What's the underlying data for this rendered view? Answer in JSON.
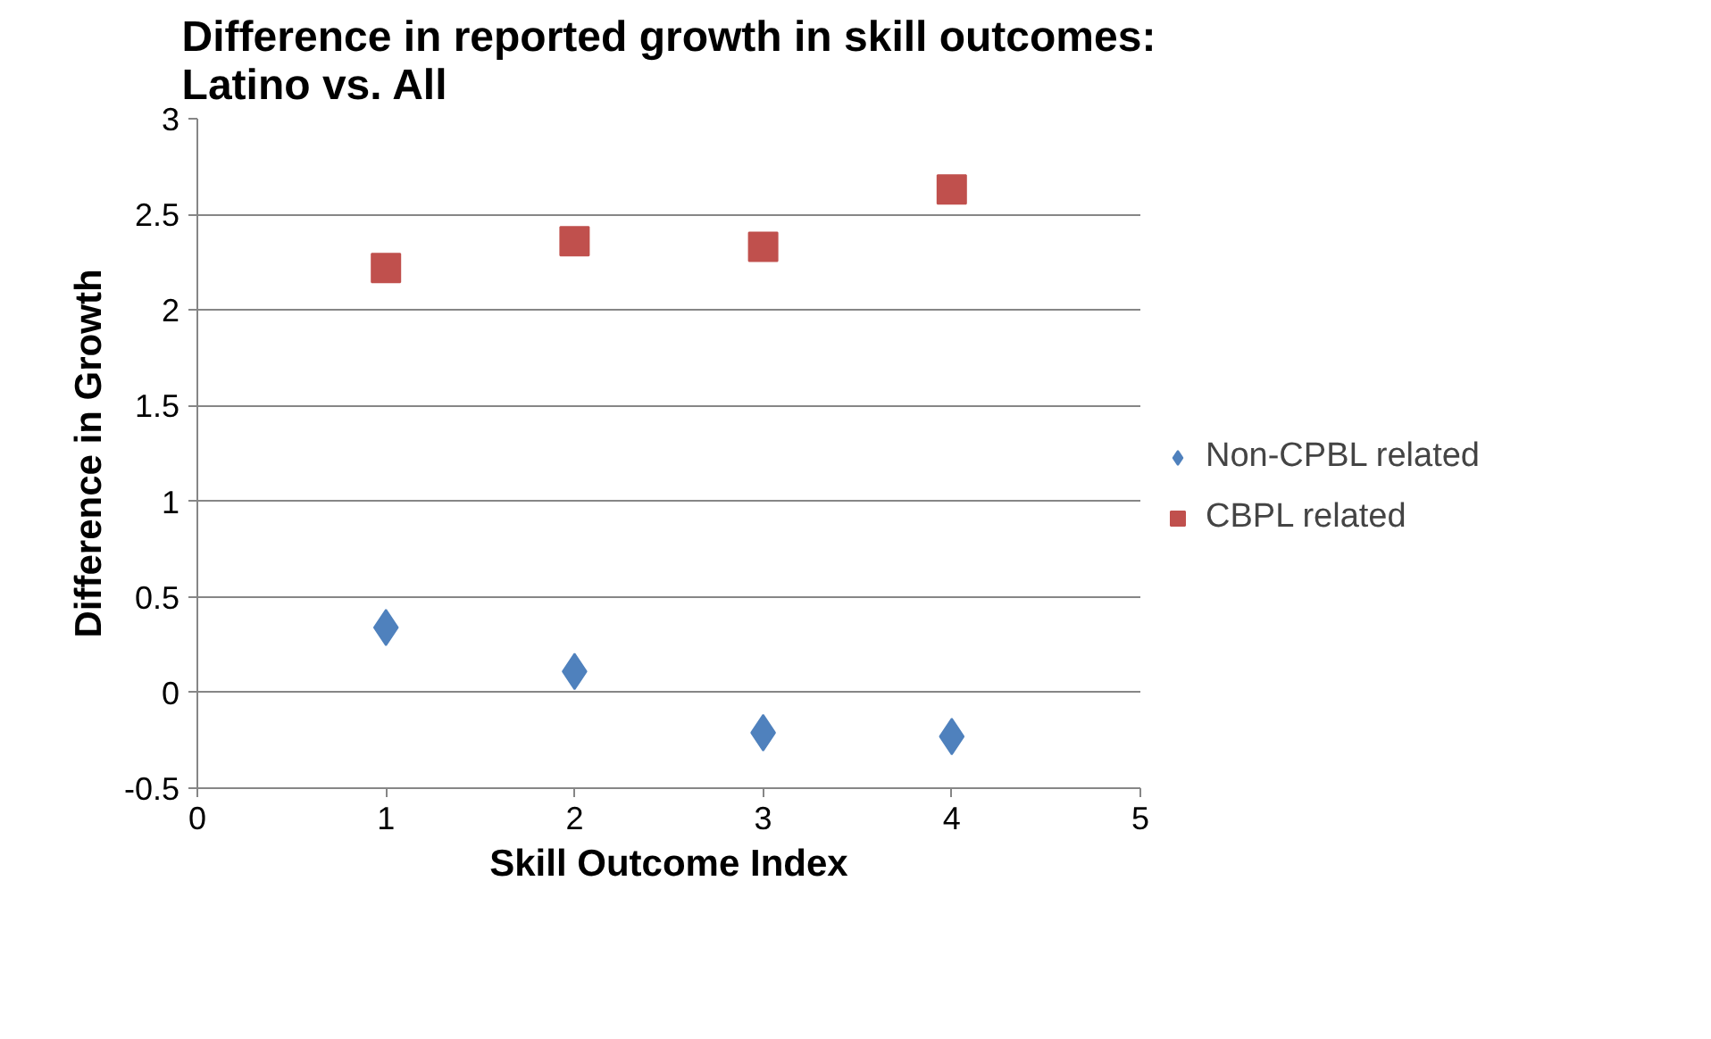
{
  "chart_data": {
    "type": "scatter",
    "title": "Difference in reported growth in skill outcomes:\nLatino vs. All",
    "xlabel": "Skill Outcome Index",
    "ylabel": "Difference in Growth",
    "x": [
      1,
      2,
      3,
      4
    ],
    "series": [
      {
        "name": "Non-CPBL related",
        "color": "#4f81bd",
        "marker": "diamond",
        "values": [
          0.34,
          0.11,
          -0.21,
          -0.23
        ]
      },
      {
        "name": "CBPL related",
        "color": "#c0504d",
        "marker": "square",
        "values": [
          2.22,
          2.36,
          2.33,
          2.63
        ]
      }
    ],
    "xlim": [
      0,
      5
    ],
    "xticks": [
      0,
      1,
      2,
      3,
      4,
      5
    ],
    "ylim": [
      -0.5,
      3
    ],
    "yticks": [
      -0.5,
      0,
      0.5,
      1,
      1.5,
      2,
      2.5,
      3
    ],
    "grid": "y",
    "legend": "right"
  }
}
